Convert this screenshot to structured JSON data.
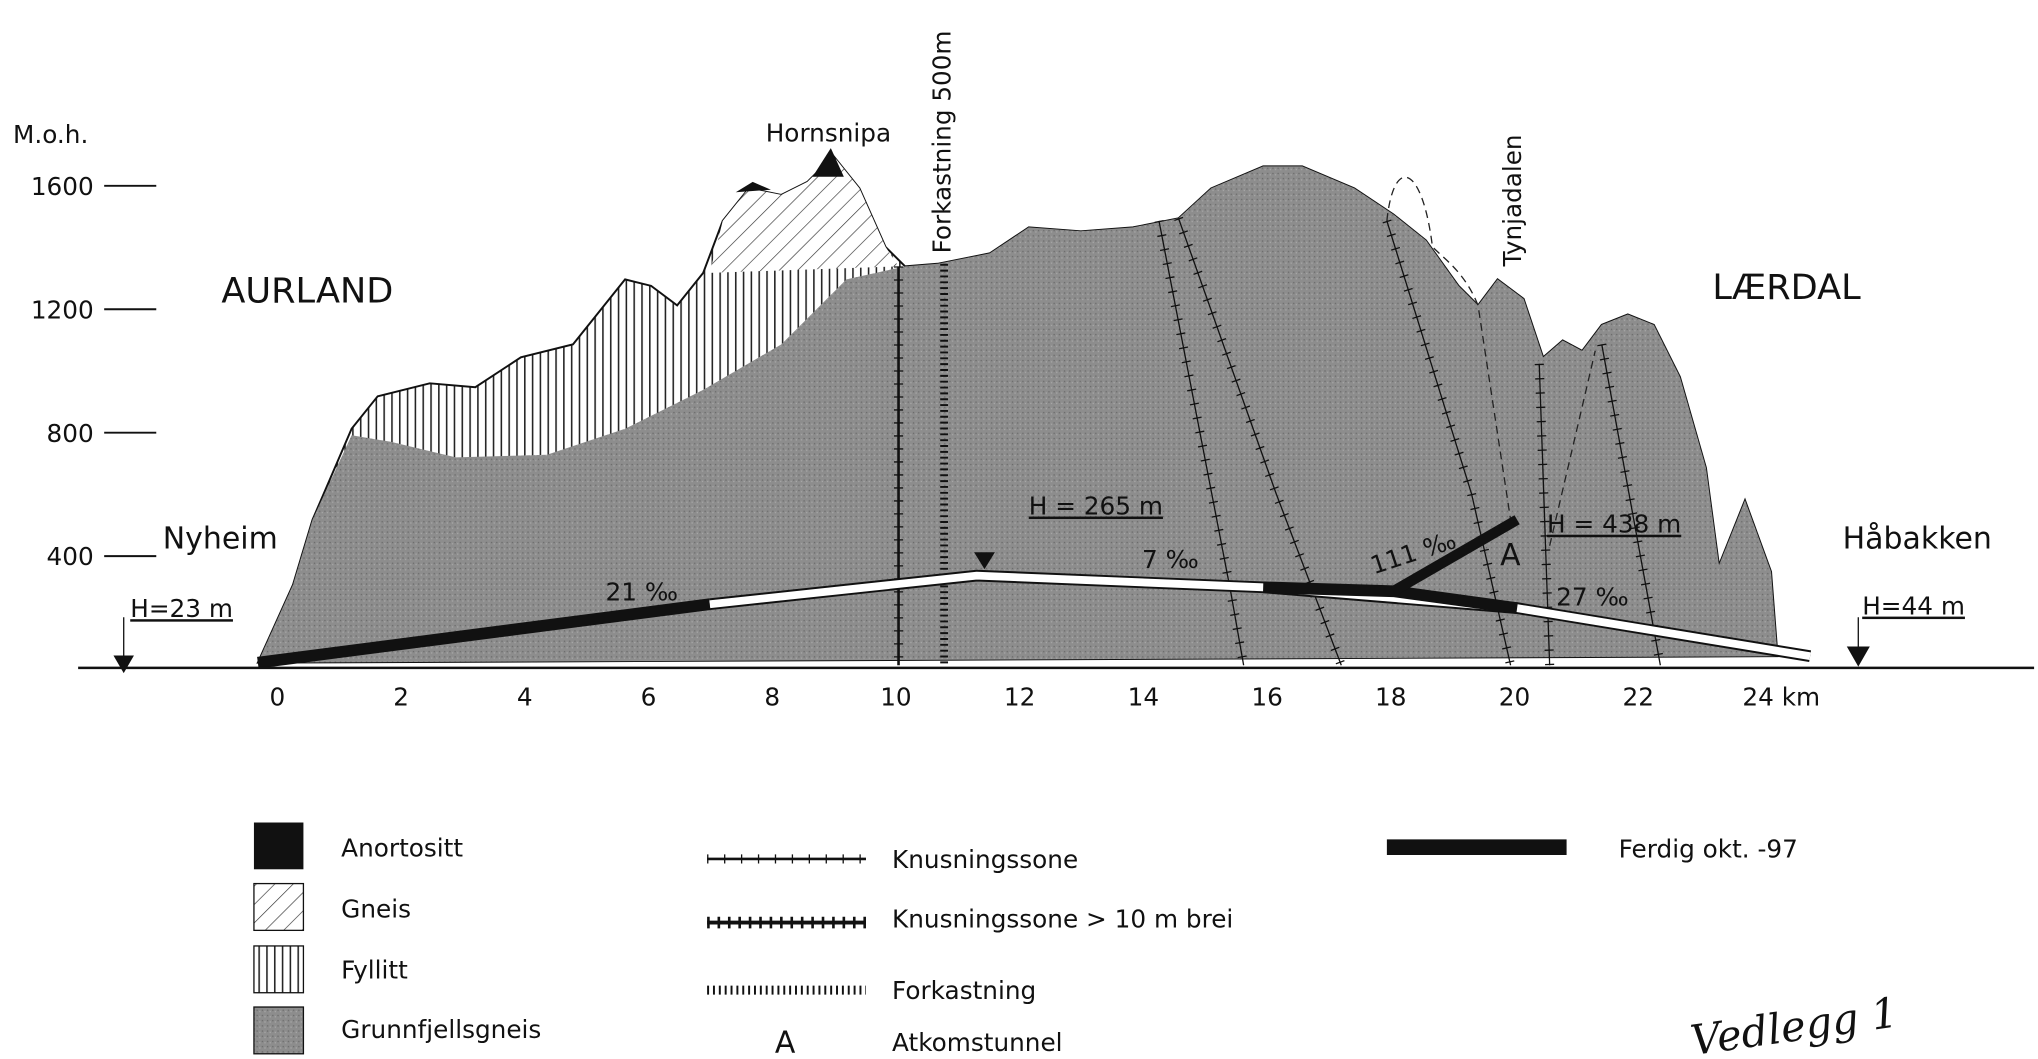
{
  "axis": {
    "unit_label": "M.o.h.",
    "yticks": [
      1600,
      1200,
      800,
      400
    ],
    "xticks": [
      0,
      2,
      4,
      6,
      8,
      10,
      12,
      14,
      16,
      18,
      20,
      22,
      {
        "value": 24,
        "label": "24 km"
      }
    ]
  },
  "places": {
    "left_region": "AURLAND",
    "right_region": "LÆRDAL",
    "left_portal": "Nyheim",
    "right_portal": "Håbakken",
    "left_height": "H=23 m",
    "right_height": "H=44 m",
    "peak": "Hornsnipa",
    "fault": "Forkastning 500m",
    "valley": "Tynjadalen"
  },
  "annotations": {
    "high_point": "H = 265 m",
    "access_height": "H = 438 m",
    "access_mark": "A"
  },
  "gradients": [
    "21 ‰",
    "7 ‰",
    "111 ‰",
    "27 ‰"
  ],
  "legend": {
    "rock_types": [
      "Anortositt",
      "Gneis",
      "Fyllitt",
      "Grunnfjellsgneis"
    ],
    "lines": [
      "Knusningssone",
      "Knusningssone > 10 m brei",
      "Forkastning"
    ],
    "access": {
      "symbol": "A",
      "label": "Atkomstunnel"
    },
    "finished": "Ferdig okt. -97"
  },
  "footer": "Vedlegg 1"
}
